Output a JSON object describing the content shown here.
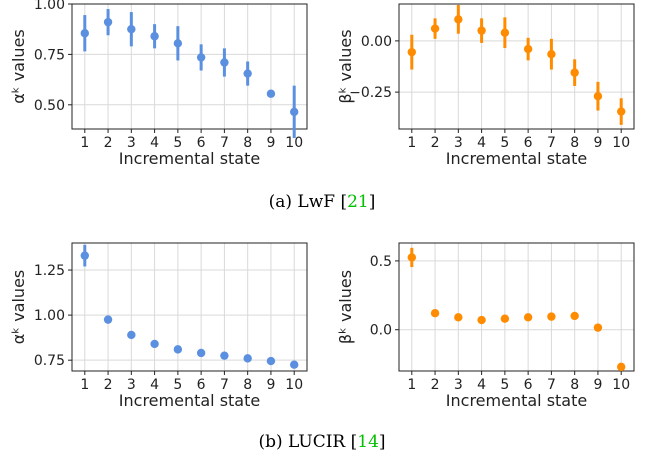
{
  "colors": {
    "alpha": "#5b8fe0",
    "beta": "#ff8c00",
    "citation": "#00c000",
    "grid": "#d9d9d9"
  },
  "captions": [
    {
      "prefix": "(a) LwF [",
      "ref": "21",
      "suffix": "]"
    },
    {
      "prefix": "(b) LUCIR [",
      "ref": "14",
      "suffix": "]"
    }
  ],
  "chart_data": [
    {
      "type": "scatter",
      "method": "LwF",
      "param": "alpha",
      "xlabel": "Incremental state",
      "ylabel": "αᵏ values",
      "x": [
        1,
        2,
        3,
        4,
        5,
        6,
        7,
        8,
        9,
        10
      ],
      "values": [
        0.855,
        0.91,
        0.875,
        0.84,
        0.805,
        0.735,
        0.71,
        0.655,
        0.555,
        0.465
      ],
      "errors": [
        0.09,
        0.065,
        0.085,
        0.06,
        0.085,
        0.065,
        0.07,
        0.06,
        0.01,
        0.13
      ],
      "ylim": [
        0.38,
        1.0
      ],
      "yticks": [
        0.5,
        0.75,
        1.0
      ],
      "ytick_labels": [
        "0.50",
        "0.75",
        "1.00"
      ],
      "grid": true,
      "color": "#5b8fe0"
    },
    {
      "type": "scatter",
      "method": "LwF",
      "param": "beta",
      "xlabel": "Incremental state",
      "ylabel": "βᵏ values",
      "x": [
        1,
        2,
        3,
        4,
        5,
        6,
        7,
        8,
        9,
        10
      ],
      "values": [
        -0.055,
        0.06,
        0.105,
        0.05,
        0.04,
        -0.04,
        -0.065,
        -0.155,
        -0.27,
        -0.345
      ],
      "errors": [
        0.085,
        0.05,
        0.07,
        0.06,
        0.075,
        0.055,
        0.075,
        0.065,
        0.07,
        0.065
      ],
      "ylim": [
        -0.43,
        0.18
      ],
      "yticks": [
        0.0,
        -0.25
      ],
      "ytick_labels": [
        "0.00",
        "−0.25"
      ],
      "grid": true,
      "color": "#ff8c00"
    },
    {
      "type": "scatter",
      "method": "LUCIR",
      "param": "alpha",
      "xlabel": "Incremental state",
      "ylabel": "αᵏ values",
      "x": [
        1,
        2,
        3,
        4,
        5,
        6,
        7,
        8,
        9,
        10
      ],
      "values": [
        1.33,
        0.975,
        0.89,
        0.84,
        0.81,
        0.79,
        0.775,
        0.76,
        0.745,
        0.725
      ],
      "errors": [
        0.06,
        0.02,
        0.01,
        0.01,
        0.01,
        0.01,
        0.01,
        0.01,
        0.01,
        0.01
      ],
      "ylim": [
        0.69,
        1.4
      ],
      "yticks": [
        0.75,
        1.0,
        1.25
      ],
      "ytick_labels": [
        "0.75",
        "1.00",
        "1.25"
      ],
      "grid": true,
      "color": "#5b8fe0"
    },
    {
      "type": "scatter",
      "method": "LUCIR",
      "param": "beta",
      "xlabel": "Incremental state",
      "ylabel": "βᵏ values",
      "x": [
        1,
        2,
        3,
        4,
        5,
        6,
        7,
        8,
        9,
        10
      ],
      "values": [
        0.525,
        0.12,
        0.09,
        0.07,
        0.08,
        0.09,
        0.095,
        0.1,
        0.015,
        -0.27
      ],
      "errors": [
        0.07,
        0.015,
        0.01,
        0.01,
        0.01,
        0.01,
        0.01,
        0.01,
        0.01,
        0.02
      ],
      "ylim": [
        -0.3,
        0.63
      ],
      "yticks": [
        0.0,
        0.5
      ],
      "ytick_labels": [
        "0.0",
        "0.5"
      ],
      "grid": true,
      "color": "#ff8c00"
    }
  ]
}
